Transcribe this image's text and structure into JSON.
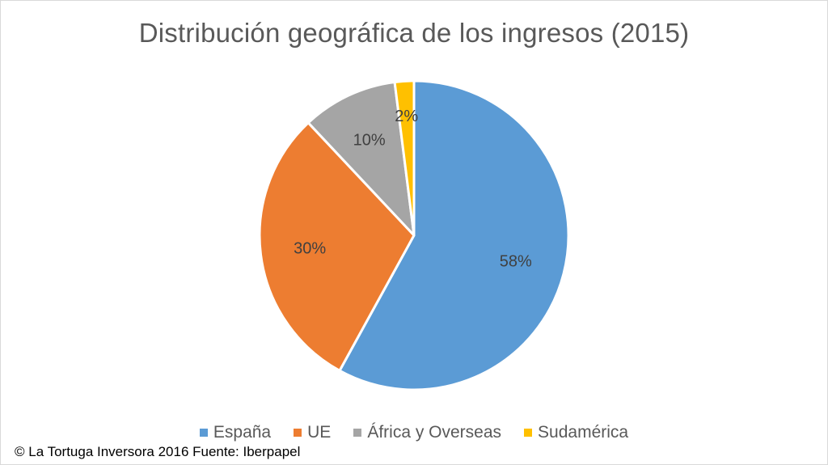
{
  "chart_data": {
    "type": "pie",
    "title": "Distribución geográfica de los ingresos (2015)",
    "categories": [
      "España",
      "UE",
      "África y Overseas",
      "Sudamérica"
    ],
    "values": [
      58,
      30,
      10,
      2
    ],
    "data_labels": [
      "58%",
      "30%",
      "10%",
      "2%"
    ],
    "colors": [
      "#5b9bd5",
      "#ed7d31",
      "#a5a5a5",
      "#ffc000"
    ],
    "legend_position": "bottom"
  },
  "footer": {
    "text": "© La Tortuga Inversora 2016 Fuente: Iberpapel"
  }
}
